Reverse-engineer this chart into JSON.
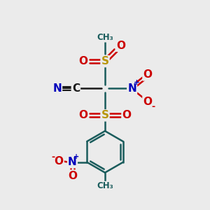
{
  "background_color": "#ebebeb",
  "bond_color": "#1a5c5c",
  "S_color": "#b8960a",
  "O_color": "#cc0000",
  "N_color": "#0000bb",
  "C_color": "#1a1a1a",
  "figsize": [
    3.0,
    3.0
  ],
  "dpi": 100,
  "xlim": [
    0,
    10
  ],
  "ylim": [
    0,
    10
  ]
}
